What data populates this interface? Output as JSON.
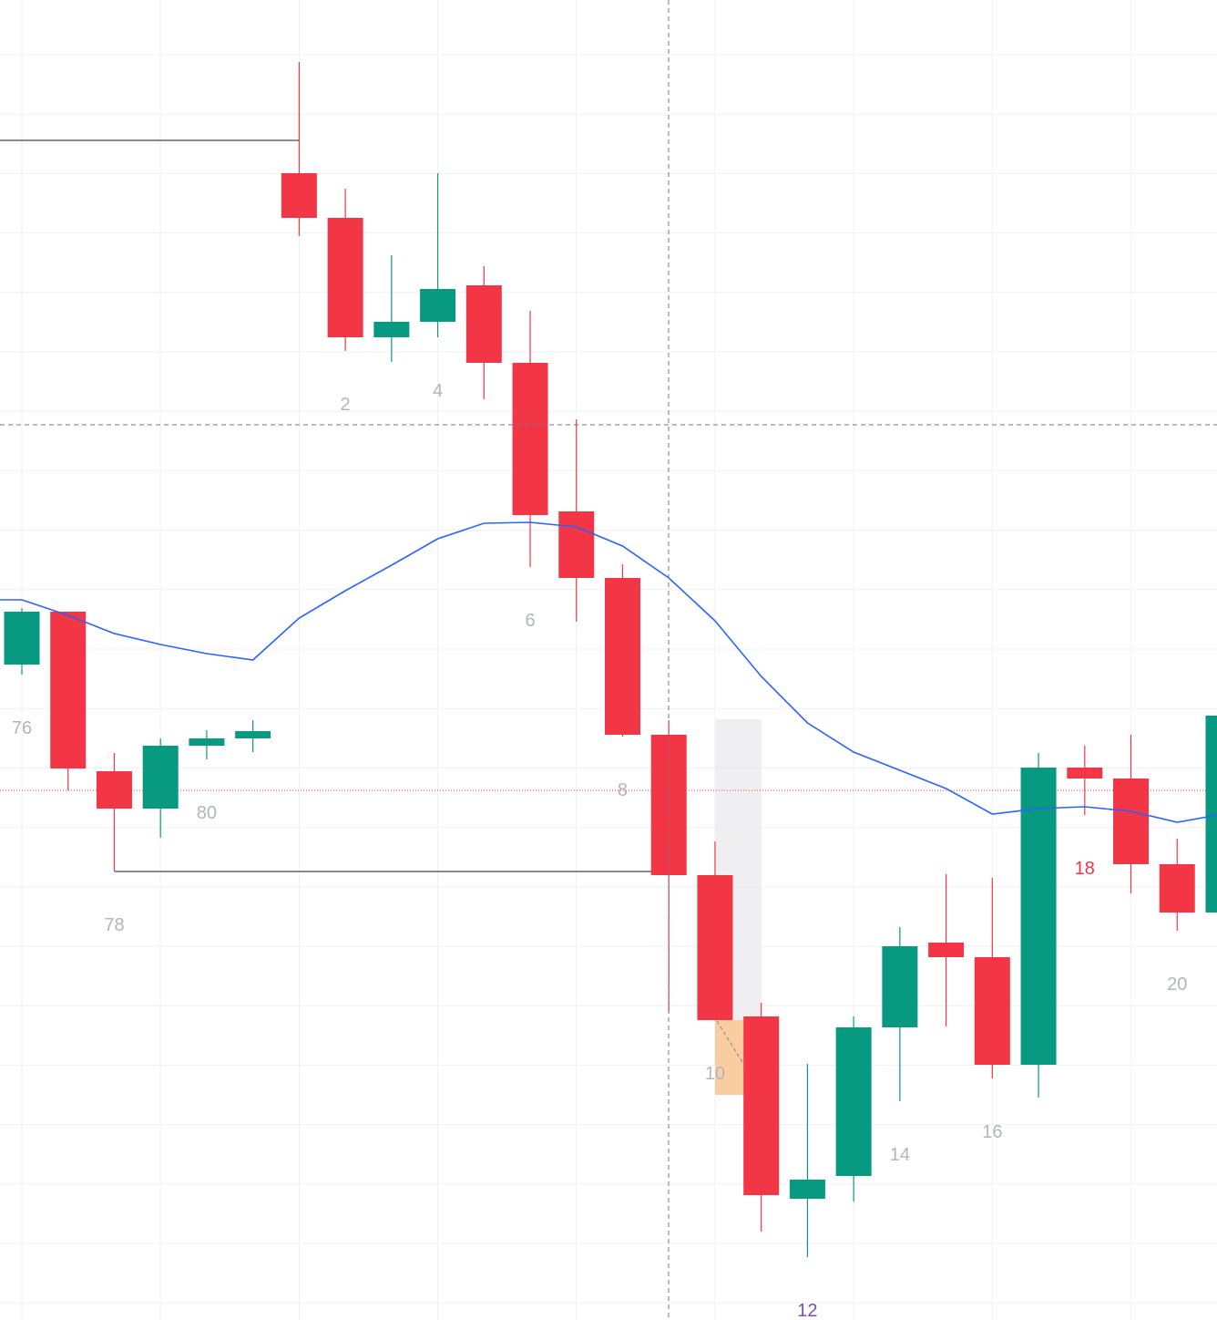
{
  "chart_data": {
    "type": "candlestick",
    "categories": [
      "76",
      null,
      "78",
      null,
      "80",
      null,
      null,
      "2",
      null,
      "4",
      null,
      "6",
      null,
      "8",
      null,
      "10",
      null,
      "12",
      null,
      "14",
      null,
      "16",
      null,
      "18",
      null,
      "20",
      null
    ],
    "category_colors": [
      "#b2b5be",
      null,
      "#b2b5be",
      null,
      "#b2b5be",
      null,
      null,
      "#b2b5be",
      null,
      "#b2b5be",
      null,
      "#b2b5be",
      null,
      "#b2b5be",
      null,
      "#b2b5be",
      null,
      "#7b4fb0",
      null,
      "#b2b5be",
      null,
      "#b2b5be",
      null,
      "#f23645",
      null,
      "#b2b5be",
      null
    ],
    "open": [
      719,
      777,
      602,
      561,
      630,
      638,
      1258,
      1209,
      1078,
      1095,
      1135,
      1050,
      887,
      814,
      642,
      488,
      333,
      133,
      158,
      321,
      414,
      398,
      280,
      606,
      594,
      500,
      447
    ],
    "high": [
      781,
      777,
      622,
      638,
      647,
      658,
      1380,
      1241,
      1168,
      1258,
      1156,
      1107,
      988,
      829,
      658,
      525,
      348,
      281,
      333,
      431,
      489,
      485,
      622,
      630,
      642,
      528,
      663
    ],
    "low": [
      708,
      581,
      492,
      529,
      615,
      623,
      1189,
      1063,
      1051,
      1078,
      1010,
      826,
      766,
      640,
      338,
      329,
      97,
      69,
      130,
      240,
      322,
      265,
      244,
      554,
      468,
      427,
      447
    ],
    "close": [
      777,
      605,
      561,
      630,
      638,
      646,
      1209,
      1078,
      1095,
      1131,
      1050,
      883,
      814,
      642,
      488,
      329,
      137,
      154,
      321,
      410,
      398,
      280,
      606,
      594,
      500,
      447,
      663
    ],
    "up_color": "#089981",
    "down_color": "#f23645",
    "moving_average": {
      "color": "#2962ff",
      "values": [
        790,
        773,
        753,
        741,
        731,
        724,
        770,
        800,
        828,
        857,
        874,
        875,
        870,
        849,
        814,
        767,
        706,
        655,
        623,
        603,
        583,
        555,
        561,
        563,
        558,
        546,
        555
      ]
    },
    "ylim": [
      0,
      1448
    ],
    "grid": true
  }
}
